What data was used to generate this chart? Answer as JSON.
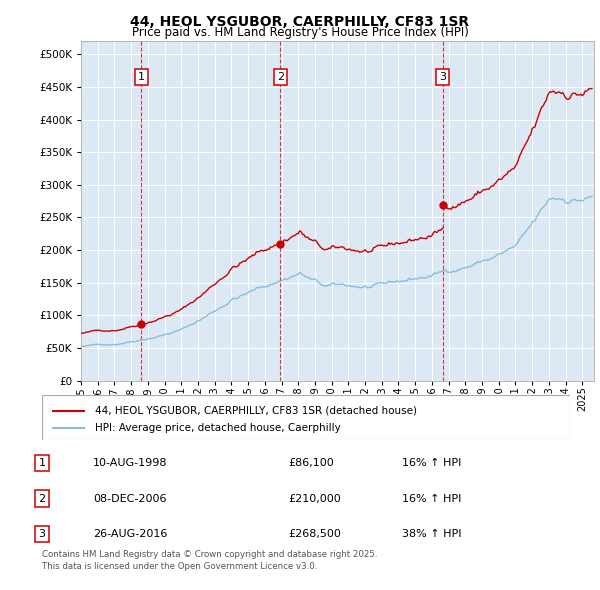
{
  "title1": "44, HEOL YSGUBOR, CAERPHILLY, CF83 1SR",
  "title2": "Price paid vs. HM Land Registry's House Price Index (HPI)",
  "bg_color": "#dce9f5",
  "legend_label_red": "44, HEOL YSGUBOR, CAERPHILLY, CF83 1SR (detached house)",
  "legend_label_blue": "HPI: Average price, detached house, Caerphilly",
  "transactions": [
    {
      "num": 1,
      "date": "10-AUG-1998",
      "price": 86100,
      "pct": "16%",
      "year": 1998.62
    },
    {
      "num": 2,
      "date": "08-DEC-2006",
      "price": 210000,
      "pct": "16%",
      "year": 2006.93
    },
    {
      "num": 3,
      "date": "26-AUG-2016",
      "price": 268500,
      "pct": "38%",
      "year": 2016.65
    }
  ],
  "footer1": "Contains HM Land Registry data © Crown copyright and database right 2025.",
  "footer2": "This data is licensed under the Open Government Licence v3.0.",
  "ylim": [
    0,
    520000
  ],
  "yticks": [
    0,
    50000,
    100000,
    150000,
    200000,
    250000,
    300000,
    350000,
    400000,
    450000,
    500000
  ],
  "xlim_start": 1995.0,
  "xlim_end": 2025.7,
  "hpi_base": 52000,
  "hpi_seed": 42
}
